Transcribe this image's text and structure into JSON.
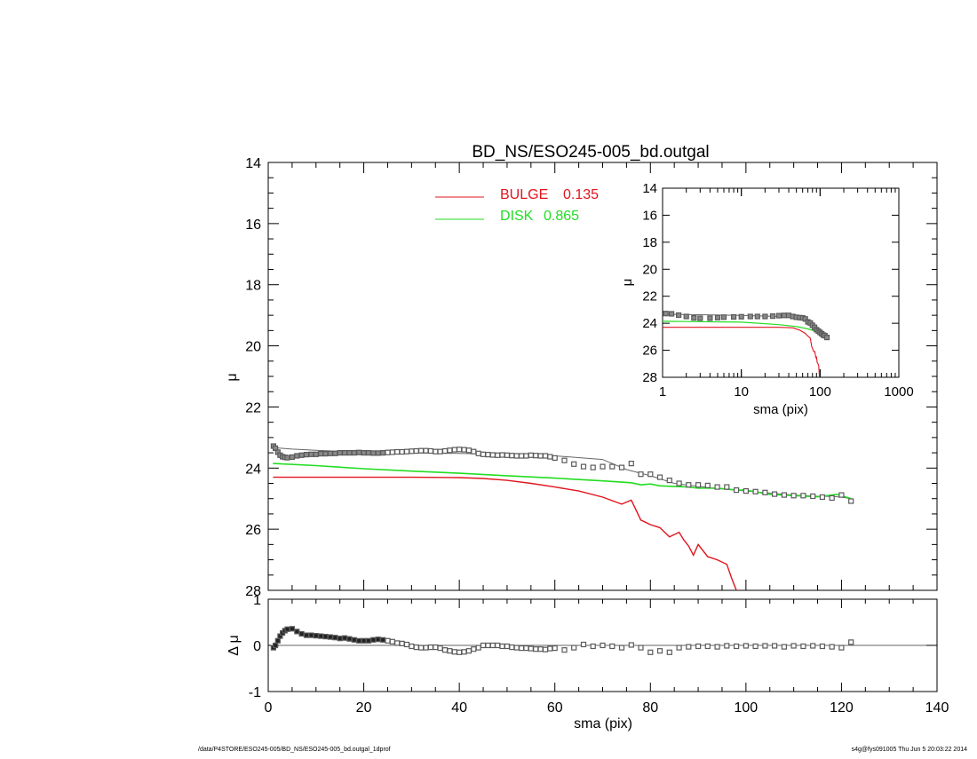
{
  "footer": {
    "left": "/data/P4STORE/ESO245-005/BD_NS/ESO245-005_bd.outgal_1dprof",
    "right": "s4g@fys091005  Thu Jun  5 20:03:22 2014"
  },
  "colors": {
    "bulge": "#e0141e",
    "disk": "#22dd22",
    "data": "#5a5a5a",
    "model": "#666666",
    "axes": "#000000"
  },
  "chart_data": [
    {
      "type": "scatter",
      "title": "BD_NS/ESO245-005_bd.outgal",
      "xlabel": "",
      "ylabel": "μ",
      "xlim": [
        0,
        140
      ],
      "ylim": [
        28,
        14
      ],
      "yticks": [
        "14",
        "16",
        "18",
        "20",
        "22",
        "24",
        "26",
        "28"
      ],
      "legend": [
        {
          "name": "BULGE",
          "value": "0.135",
          "color": "#e0141e"
        },
        {
          "name": "DISK",
          "value": "0.865",
          "color": "#22dd22"
        }
      ],
      "series": [
        {
          "kind": "observed",
          "x": [
            1.1,
            1.5,
            2,
            2.5,
            3,
            3.5,
            4,
            5,
            6,
            7,
            8,
            9,
            10,
            11,
            12,
            13,
            14,
            15,
            16,
            17,
            18,
            19,
            20,
            21,
            22,
            23,
            24,
            25,
            26,
            27,
            28,
            29,
            30,
            31,
            32,
            33,
            34,
            35,
            36,
            37,
            38,
            39,
            40,
            41,
            42,
            43,
            44,
            45,
            46,
            47,
            48,
            49,
            50,
            51,
            52,
            53,
            54,
            55,
            56,
            57,
            58,
            59,
            60,
            62,
            64,
            66,
            68,
            70,
            72,
            74,
            76,
            78,
            80,
            82,
            84,
            86,
            88,
            90,
            92,
            94,
            96,
            98,
            100,
            102,
            104,
            106,
            108,
            110,
            112,
            114,
            116,
            118,
            120,
            122
          ],
          "y": [
            23.28,
            23.35,
            23.48,
            23.58,
            23.63,
            23.65,
            23.66,
            23.64,
            23.6,
            23.58,
            23.56,
            23.55,
            23.55,
            23.53,
            23.53,
            23.52,
            23.52,
            23.5,
            23.5,
            23.5,
            23.5,
            23.49,
            23.5,
            23.5,
            23.51,
            23.51,
            23.5,
            23.49,
            23.48,
            23.47,
            23.47,
            23.46,
            23.45,
            23.44,
            23.43,
            23.43,
            23.44,
            23.46,
            23.46,
            23.44,
            23.42,
            23.4,
            23.39,
            23.4,
            23.42,
            23.46,
            23.52,
            23.55,
            23.56,
            23.57,
            23.58,
            23.57,
            23.58,
            23.59,
            23.6,
            23.6,
            23.6,
            23.58,
            23.59,
            23.6,
            23.6,
            23.63,
            23.67,
            23.75,
            23.87,
            23.95,
            23.98,
            23.95,
            23.95,
            23.98,
            23.85,
            24.2,
            24.2,
            24.3,
            24.4,
            24.5,
            24.55,
            24.55,
            24.57,
            24.62,
            24.62,
            24.72,
            24.75,
            24.77,
            24.8,
            24.85,
            24.88,
            24.9,
            24.9,
            24.92,
            24.95,
            24.98,
            24.88,
            25.08
          ]
        },
        {
          "kind": "model",
          "x": [
            1,
            5,
            10,
            20,
            30,
            40,
            50,
            60,
            70,
            75,
            80,
            85,
            90,
            95,
            100,
            105,
            110,
            115,
            118,
            120,
            122
          ],
          "y": [
            23.33,
            23.38,
            23.42,
            23.48,
            23.5,
            23.52,
            23.55,
            23.6,
            23.72,
            24.05,
            24.25,
            24.5,
            24.6,
            24.68,
            24.75,
            24.82,
            24.88,
            24.92,
            24.93,
            24.95,
            25.0
          ]
        },
        {
          "name": "DISK",
          "x": [
            1,
            10,
            20,
            30,
            40,
            50,
            60,
            70,
            76,
            78,
            80,
            82,
            85,
            88,
            90,
            92,
            95,
            98,
            100,
            105,
            110,
            115,
            117,
            119,
            122
          ],
          "y": [
            23.85,
            23.92,
            24.02,
            24.1,
            24.17,
            24.25,
            24.33,
            24.42,
            24.48,
            24.55,
            24.52,
            24.58,
            24.6,
            24.62,
            24.66,
            24.65,
            24.67,
            24.72,
            24.72,
            24.86,
            24.9,
            24.94,
            24.9,
            24.86,
            25.0
          ]
        },
        {
          "name": "BULGE",
          "x": [
            1,
            10,
            20,
            30,
            40,
            45,
            50,
            55,
            60,
            65,
            70,
            74,
            76,
            78,
            80,
            82,
            83,
            84,
            86,
            87,
            88,
            89,
            90,
            92,
            94,
            96,
            97,
            98
          ],
          "y": [
            24.3,
            24.3,
            24.3,
            24.3,
            24.31,
            24.34,
            24.4,
            24.5,
            24.62,
            24.75,
            24.95,
            25.18,
            25.05,
            25.7,
            25.85,
            25.95,
            26.1,
            26.25,
            26.1,
            26.35,
            26.55,
            26.85,
            26.5,
            26.9,
            27.0,
            27.15,
            27.6,
            28.0
          ]
        }
      ]
    },
    {
      "type": "scatter",
      "xlabel": "sma (pix)",
      "ylabel": "Δ μ",
      "xlim": [
        0,
        140
      ],
      "ylim": [
        -1,
        1
      ],
      "xticks": [
        "0",
        "20",
        "40",
        "60",
        "80",
        "100",
        "120",
        "140"
      ],
      "yticks": [
        "-1",
        "0",
        "1"
      ],
      "series": [
        {
          "kind": "residual",
          "x": [
            1.1,
            1.5,
            2,
            2.5,
            3,
            3.5,
            4,
            5,
            6,
            7,
            8,
            9,
            10,
            11,
            12,
            13,
            14,
            15,
            16,
            17,
            18,
            19,
            20,
            21,
            22,
            23,
            24,
            25,
            26,
            27,
            28,
            29,
            30,
            31,
            32,
            33,
            34,
            35,
            36,
            37,
            38,
            39,
            40,
            41,
            42,
            43,
            44,
            45,
            46,
            47,
            48,
            49,
            50,
            51,
            52,
            53,
            54,
            55,
            56,
            57,
            58,
            59,
            60,
            62,
            64,
            66,
            68,
            70,
            72,
            74,
            76,
            78,
            80,
            82,
            84,
            86,
            88,
            90,
            92,
            94,
            96,
            98,
            100,
            102,
            104,
            106,
            108,
            110,
            112,
            114,
            116,
            118,
            120,
            122
          ],
          "y": [
            -0.05,
            0.0,
            0.1,
            0.2,
            0.27,
            0.32,
            0.35,
            0.36,
            0.3,
            0.25,
            0.22,
            0.22,
            0.21,
            0.2,
            0.19,
            0.18,
            0.17,
            0.15,
            0.16,
            0.14,
            0.12,
            0.1,
            0.1,
            0.1,
            0.12,
            0.13,
            0.12,
            0.1,
            0.08,
            0.05,
            0.04,
            0.02,
            -0.02,
            -0.04,
            -0.05,
            -0.05,
            -0.04,
            -0.04,
            -0.06,
            -0.1,
            -0.12,
            -0.14,
            -0.15,
            -0.14,
            -0.12,
            -0.08,
            -0.05,
            0.0,
            0.0,
            0.0,
            0.0,
            -0.02,
            -0.02,
            -0.04,
            -0.05,
            -0.06,
            -0.06,
            -0.07,
            -0.08,
            -0.08,
            -0.09,
            -0.07,
            -0.06,
            -0.1,
            -0.05,
            0.02,
            -0.02,
            0.0,
            -0.02,
            -0.05,
            0.01,
            -0.05,
            -0.15,
            -0.12,
            -0.15,
            -0.05,
            -0.03,
            -0.02,
            -0.02,
            -0.03,
            -0.01,
            -0.02,
            -0.01,
            -0.02,
            -0.01,
            -0.01,
            -0.03,
            -0.01,
            -0.02,
            -0.01,
            -0.02,
            -0.03,
            -0.05,
            0.07
          ]
        }
      ]
    },
    {
      "type": "scatter",
      "title": "",
      "xlabel": "sma (pix)",
      "ylabel": "μ",
      "xscale": "log",
      "xlim": [
        1,
        1000
      ],
      "ylim": [
        28,
        14
      ],
      "xticks": [
        "1",
        "10",
        "100",
        "1000"
      ],
      "yticks": [
        "14",
        "16",
        "18",
        "20",
        "22",
        "24",
        "26",
        "28"
      ],
      "series": [
        {
          "kind": "observed",
          "x": [
            1.1,
            1.3,
            1.6,
            2,
            2.5,
            3,
            4,
            5,
            6,
            8,
            10,
            13,
            16,
            20,
            25,
            30,
            35,
            40,
            45,
            50,
            55,
            60,
            65,
            70,
            75,
            80,
            85,
            90,
            95,
            100,
            105,
            110,
            115,
            122
          ],
          "y": [
            23.28,
            23.3,
            23.4,
            23.5,
            23.6,
            23.63,
            23.62,
            23.58,
            23.55,
            23.53,
            23.52,
            23.5,
            23.5,
            23.5,
            23.47,
            23.44,
            23.42,
            23.42,
            23.5,
            23.56,
            23.58,
            23.6,
            23.68,
            23.9,
            23.98,
            24.15,
            24.3,
            24.48,
            24.58,
            24.68,
            24.78,
            24.88,
            24.92,
            25.05
          ]
        },
        {
          "kind": "model",
          "x": [
            1,
            10,
            30,
            50,
            60,
            70,
            80,
            90,
            100,
            110,
            122
          ],
          "y": [
            23.33,
            23.42,
            23.5,
            23.55,
            23.6,
            23.72,
            24.25,
            24.6,
            24.75,
            24.88,
            25.0
          ]
        },
        {
          "name": "DISK",
          "x": [
            1,
            10,
            30,
            50,
            70,
            80,
            90,
            100,
            110,
            122
          ],
          "y": [
            23.85,
            23.92,
            24.1,
            24.25,
            24.42,
            24.52,
            24.66,
            24.72,
            24.88,
            25.0
          ]
        },
        {
          "name": "BULGE",
          "x": [
            1,
            10,
            30,
            45,
            55,
            65,
            70,
            75,
            78,
            80,
            83,
            86,
            88,
            90,
            92,
            94,
            96,
            98
          ],
          "y": [
            24.3,
            24.3,
            24.3,
            24.34,
            24.5,
            24.75,
            24.95,
            25.1,
            25.7,
            25.85,
            26.1,
            26.1,
            26.55,
            26.5,
            26.9,
            27.0,
            27.15,
            28.0
          ]
        }
      ]
    }
  ]
}
